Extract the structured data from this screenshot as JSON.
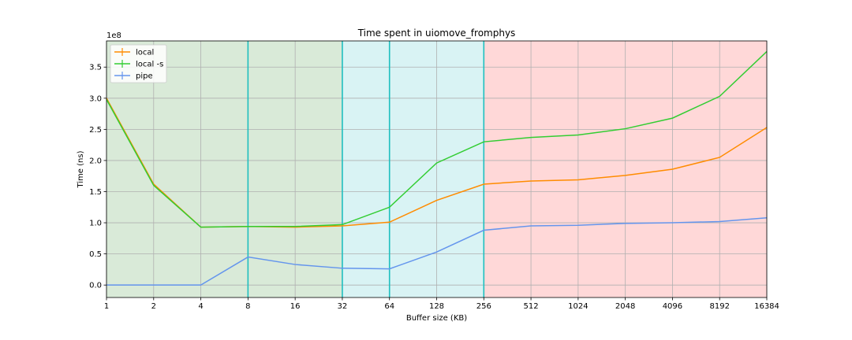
{
  "chart_data": {
    "type": "line",
    "title": "Time spent in uiomove_fromphys",
    "xlabel": "Buffer size (KB)",
    "ylabel": "Time (ns)",
    "y_offset_text": "1e8",
    "x_scale": "log2",
    "x": [
      1,
      2,
      4,
      8,
      16,
      32,
      64,
      128,
      256,
      512,
      1024,
      2048,
      4096,
      8192,
      16384
    ],
    "x_tick_labels": [
      "1",
      "2",
      "4",
      "8",
      "16",
      "32",
      "64",
      "128",
      "256",
      "512",
      "1024",
      "2048",
      "4096",
      "8192",
      "16384"
    ],
    "xlim": [
      1,
      16384
    ],
    "ylim": [
      -0.2,
      3.92
    ],
    "y_ticks": [
      0.0,
      0.5,
      1.0,
      1.5,
      2.0,
      2.5,
      3.0,
      3.5
    ],
    "y_tick_labels": [
      "0.0",
      "0.5",
      "1.0",
      "1.5",
      "2.0",
      "2.5",
      "3.0",
      "3.5"
    ],
    "grid": true,
    "legend_position": "top-left",
    "series": [
      {
        "name": "local",
        "color": "#ff8c00",
        "values": [
          3.0,
          1.62,
          0.93,
          0.94,
          0.93,
          0.95,
          1.01,
          1.36,
          1.62,
          1.67,
          1.69,
          1.76,
          1.86,
          2.05,
          2.53
        ]
      },
      {
        "name": "local -s",
        "color": "#32cd32",
        "values": [
          2.98,
          1.6,
          0.93,
          0.94,
          0.94,
          0.97,
          1.25,
          1.96,
          2.3,
          2.37,
          2.41,
          2.51,
          2.68,
          3.03,
          3.75
        ]
      },
      {
        "name": "pipe",
        "color": "#6495ed",
        "values": [
          0.0,
          0.0,
          0.0,
          0.45,
          0.33,
          0.27,
          0.26,
          0.53,
          0.88,
          0.95,
          0.96,
          0.99,
          1.0,
          1.02,
          1.08
        ]
      }
    ],
    "regions": [
      {
        "from": 1,
        "to": 32,
        "color": "#d9ead8"
      },
      {
        "from": 32,
        "to": 256,
        "color": "#d9f3f4"
      },
      {
        "from": 256,
        "to": 16384,
        "color": "#ffd8d8"
      }
    ],
    "vlines": {
      "x": [
        8,
        32,
        64,
        256
      ],
      "color": "#1fbfbf"
    }
  }
}
